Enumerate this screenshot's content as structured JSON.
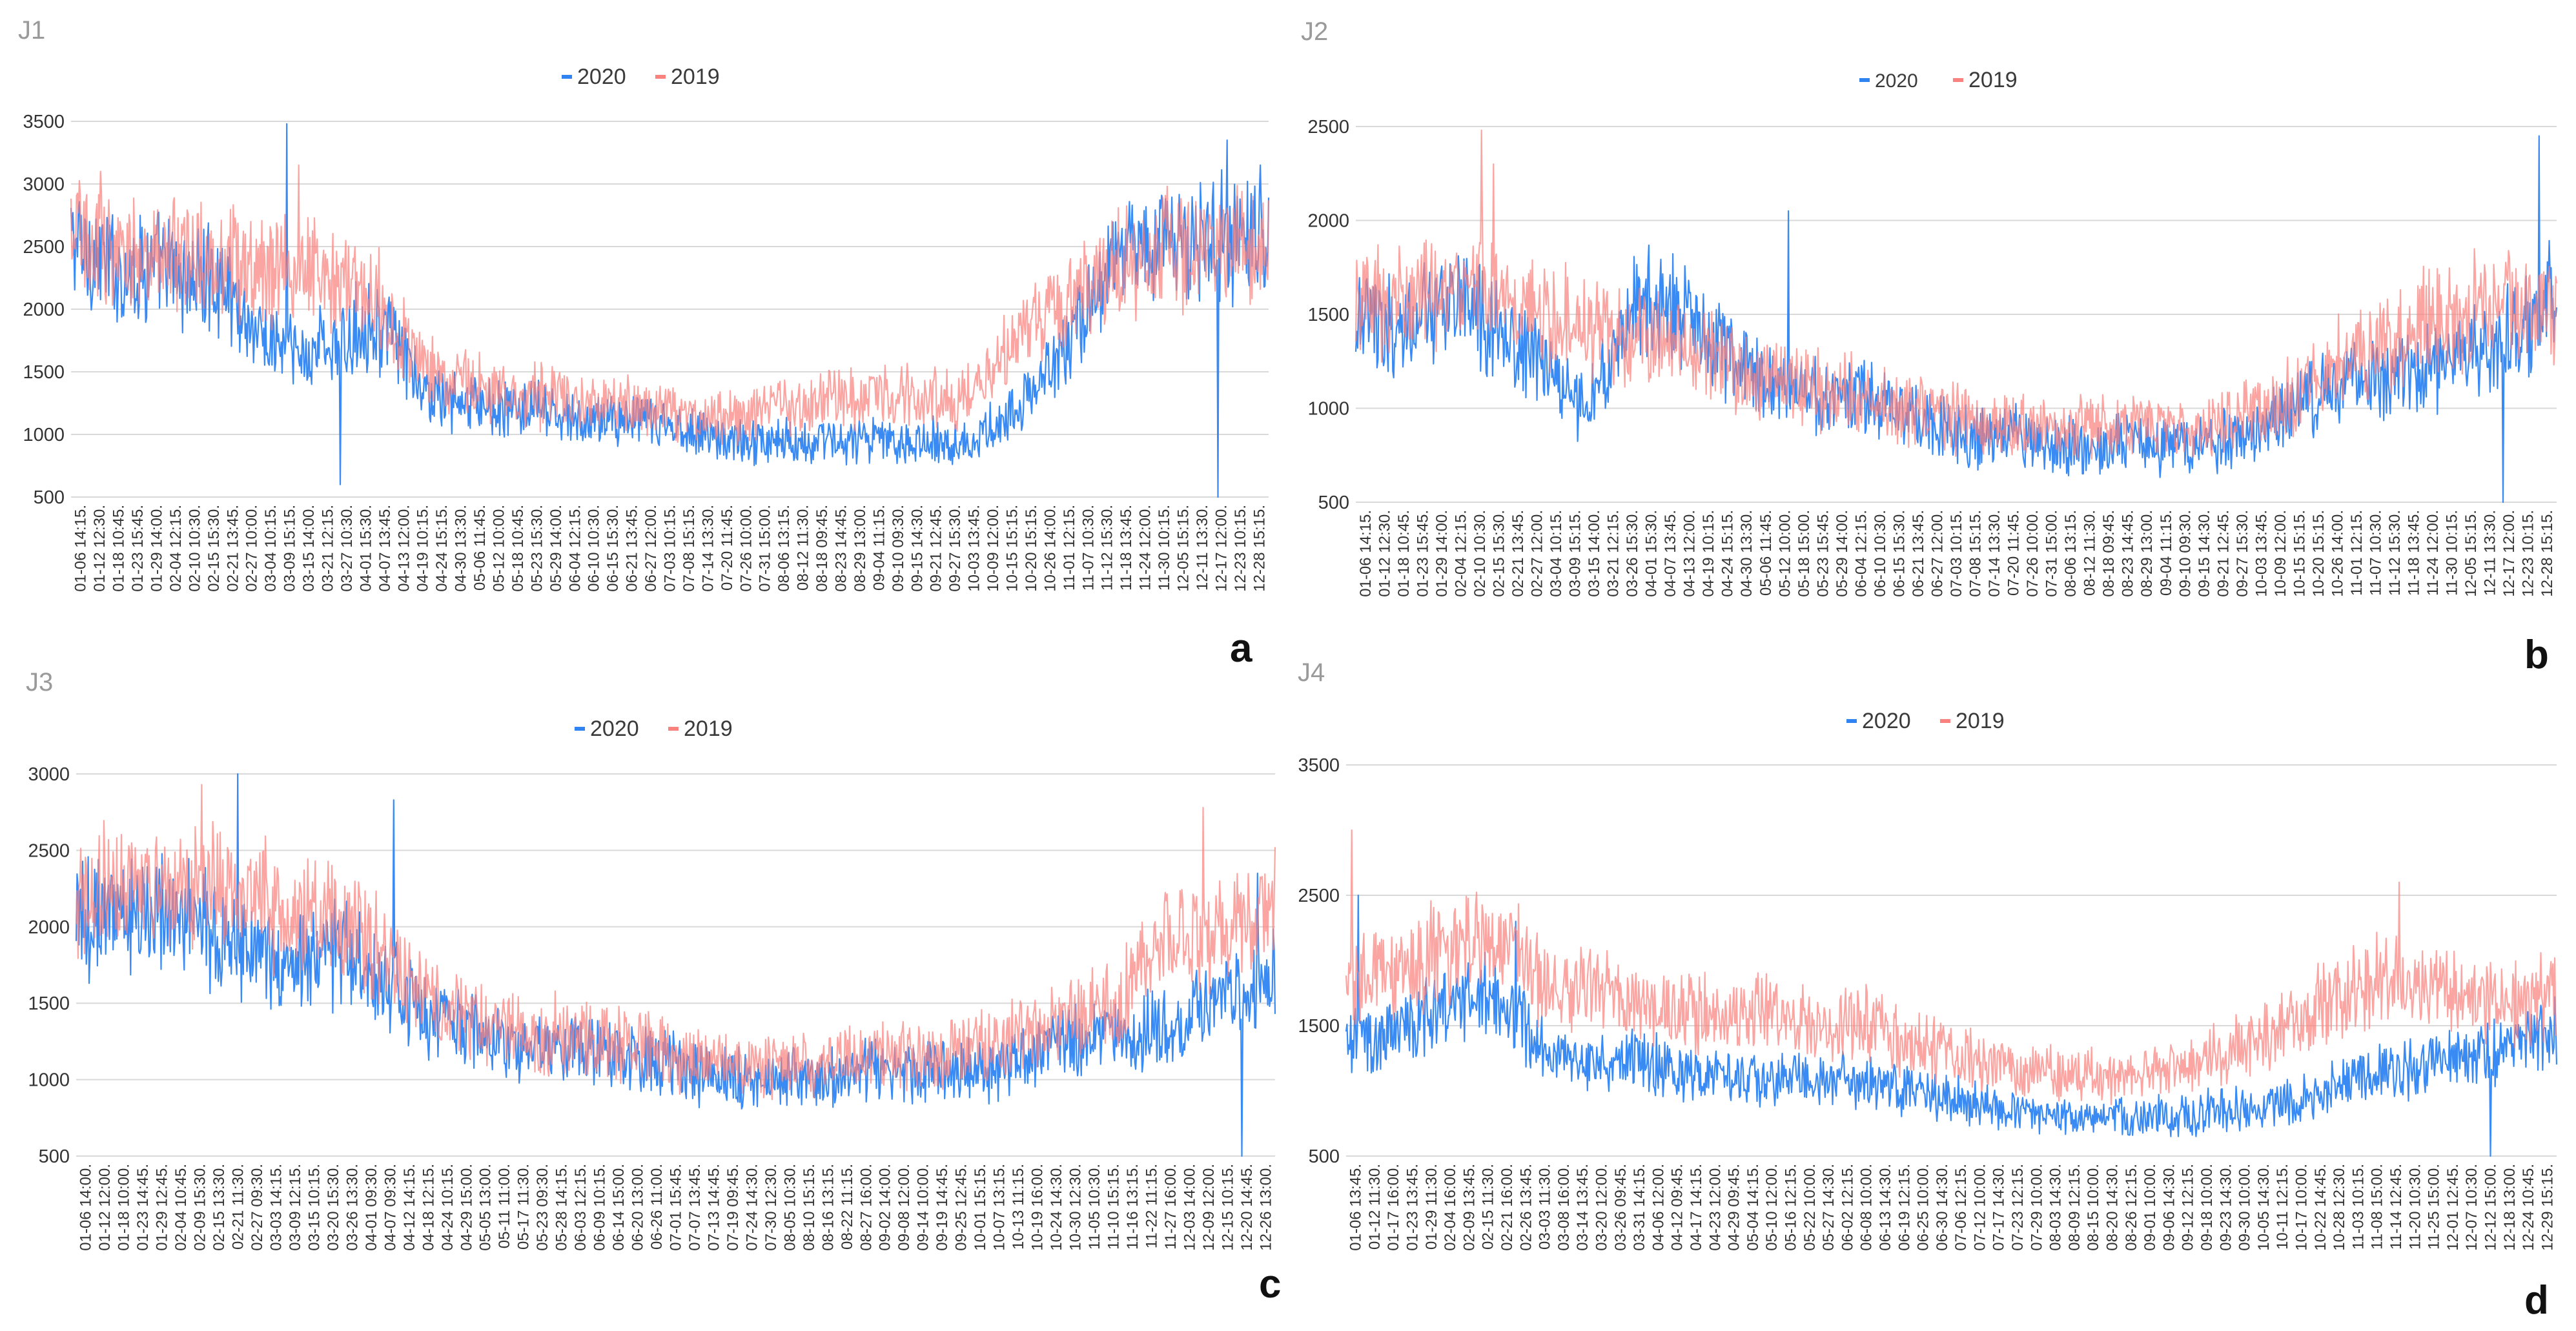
{
  "figure": {
    "description_panels": [
      "a",
      "b",
      "c",
      "d"
    ]
  },
  "chart_data": [
    {
      "id": "a",
      "type": "line",
      "title": "J1",
      "letter": "a",
      "legend": [
        "2020",
        "2019"
      ],
      "ylim": [
        500,
        3500
      ],
      "yticks": [
        500,
        1000,
        1500,
        2000,
        2500,
        3000,
        3500
      ],
      "grid": true,
      "x_tick_labels": [
        "01-06 14:15.",
        "01-12 12:30.",
        "01-18 10:45.",
        "01-23 15:45.",
        "01-29 14:00.",
        "02-04 12:15.",
        "02-10 10:30.",
        "02-15 15:30.",
        "02-21 13:45.",
        "02-27 10:00.",
        "03-04 10:15.",
        "03-09 15:15.",
        "03-15 14:00.",
        "03-21 12:15.",
        "03-27 10:30.",
        "04-01 15:30.",
        "04-07 13:45.",
        "04-13 12:00.",
        "04-19 10:15.",
        "04-24 15:15.",
        "04-30 13:30.",
        "05-06 11:45.",
        "05-12 10:00.",
        "05-18 10:45.",
        "05-23 15:30.",
        "05-29 14:00.",
        "06-04 12:15.",
        "06-10 10:30.",
        "06-15 15:30.",
        "06-21 13:45.",
        "06-27 12:00.",
        "07-03 10:15.",
        "07-08 15:15.",
        "07-14 13:30.",
        "07-20 11:45.",
        "07-26 10:00.",
        "07-31 15:00.",
        "08-06 13:15.",
        "08-12 11:30.",
        "08-18 09:45.",
        "08-23 14:45.",
        "08-29 13:00.",
        "09-04 11:15.",
        "09-10 09:30.",
        "09-15 14:30.",
        "09-21 12:45.",
        "09-27 15:30.",
        "10-03 13:45.",
        "10-09 12:00.",
        "10-15 15:15.",
        "10-20 15:15.",
        "10-26 14:00.",
        "11-01 12:15.",
        "11-07 10:30.",
        "11-12 15:30.",
        "11-18 13:45.",
        "11-24 12:00.",
        "11-30 10:15.",
        "12-05 15:15.",
        "12-11 13:30.",
        "12-17 12:00.",
        "12-23 10:15.",
        "12-28 15:15."
      ],
      "series": [
        {
          "name": "2020",
          "color": "#2f84f2",
          "profile": [
            2550,
            2450,
            2350,
            2300,
            2350,
            2300,
            2250,
            2250,
            2200,
            1950,
            1750,
            1700,
            1600,
            1750,
            1650,
            1900,
            1850,
            1700,
            1350,
            1300,
            1250,
            1250,
            1200,
            1200,
            1200,
            1150,
            1100,
            1100,
            1150,
            1100,
            1100,
            1050,
            1050,
            1000,
            950,
            950,
            950,
            950,
            950,
            950,
            950,
            950,
            950,
            950,
            950,
            950,
            950,
            950,
            1100,
            1200,
            1350,
            1600,
            1850,
            2100,
            2400,
            2550,
            2550,
            2550,
            2550,
            2550,
            2550,
            2550,
            2550
          ],
          "spikes": [
            {
              "at": 0.18,
              "value": 3480
            },
            {
              "at": 0.965,
              "value": 3350
            },
            {
              "at": 0.993,
              "value": 3150
            },
            {
              "at": 0.225,
              "value": 600
            },
            {
              "at": 0.958,
              "value": 500
            }
          ]
        },
        {
          "name": "2019",
          "color": "#f9827e",
          "profile": [
            2600,
            2550,
            2450,
            2450,
            2450,
            2450,
            2450,
            2450,
            2400,
            2300,
            2300,
            2300,
            2250,
            2300,
            2250,
            2200,
            2100,
            1800,
            1600,
            1500,
            1450,
            1400,
            1350,
            1300,
            1300,
            1300,
            1250,
            1250,
            1250,
            1200,
            1200,
            1200,
            1150,
            1150,
            1150,
            1150,
            1200,
            1200,
            1250,
            1250,
            1300,
            1300,
            1300,
            1300,
            1300,
            1300,
            1300,
            1350,
            1600,
            1800,
            1950,
            2000,
            2100,
            2200,
            2300,
            2400,
            2450,
            2500,
            2500,
            2500,
            2500,
            2500,
            2500
          ],
          "spikes": [
            {
              "at": 0.19,
              "value": 3150
            },
            {
              "at": 0.025,
              "value": 3100
            }
          ]
        }
      ]
    },
    {
      "id": "b",
      "type": "line",
      "title": "J2",
      "letter": "b",
      "legend": [
        "2020",
        "2019"
      ],
      "ylim": [
        500,
        2500
      ],
      "yticks": [
        500,
        1000,
        1500,
        2000,
        2500
      ],
      "grid": true,
      "x_tick_labels": [
        "01-06 14:15.",
        "01-12 12:30.",
        "01-18 10:45.",
        "01-23 15:45.",
        "01-29 14:00.",
        "02-04 12:15.",
        "02-10 10:30.",
        "02-15 15:30.",
        "02-21 13:45.",
        "02-27 12:00.",
        "03-04 10:15.",
        "03-09 15:15.",
        "03-15 14:00.",
        "03-21 12:15.",
        "03-26 15:30.",
        "04-01 15:30.",
        "04-07 13:45.",
        "04-13 12:00.",
        "04-19 10:15.",
        "04-24 15:15.",
        "04-30 13:30.",
        "05-06 11:45.",
        "05-12 10:00.",
        "05-18 15:00.",
        "05-23 15:45.",
        "05-29 14:00.",
        "06-04 12:15.",
        "06-10 10:30.",
        "06-15 15:30.",
        "06-21 13:45.",
        "06-27 12:00.",
        "07-03 10:15.",
        "07-08 15:15.",
        "07-14 13:30.",
        "07-20 11:45.",
        "07-26 10:00.",
        "07-31 15:00.",
        "08-06 13:15.",
        "08-12 11:30.",
        "08-18 09:45.",
        "08-23 14:45.",
        "08-29 13:00.",
        "09-04 11:15.",
        "09-10 09:30.",
        "09-15 14:30.",
        "09-21 12:45.",
        "09-27 15:30.",
        "10-03 13:45.",
        "10-09 12:00.",
        "10-15 15:15.",
        "10-20 15:15.",
        "10-26 14:00.",
        "11-01 12:15.",
        "11-07 10:30.",
        "11-12 15:30.",
        "11-18 13:45.",
        "11-24 12:00.",
        "11-30 10:15.",
        "12-05 15:15.",
        "12-11 13:30.",
        "12-17 12:00.",
        "12-23 10:15.",
        "12-28 15:15."
      ],
      "series": [
        {
          "name": "2020",
          "color": "#2f84f2",
          "profile": [
            1500,
            1450,
            1400,
            1450,
            1500,
            1550,
            1500,
            1450,
            1350,
            1300,
            1200,
            1050,
            1000,
            1200,
            1450,
            1550,
            1550,
            1500,
            1400,
            1300,
            1200,
            1150,
            1100,
            1100,
            1050,
            1050,
            1050,
            1050,
            1000,
            950,
            900,
            900,
            850,
            850,
            850,
            850,
            800,
            800,
            800,
            800,
            800,
            800,
            800,
            800,
            800,
            850,
            850,
            900,
            1000,
            1050,
            1100,
            1150,
            1150,
            1150,
            1200,
            1200,
            1250,
            1250,
            1300,
            1350,
            1400,
            1500,
            1700
          ],
          "spikes": [
            {
              "at": 0.985,
              "value": 2450
            },
            {
              "at": 0.36,
              "value": 2050
            },
            {
              "at": 0.955,
              "value": 500
            }
          ]
        },
        {
          "name": "2019",
          "color": "#f9827e",
          "profile": [
            1550,
            1550,
            1550,
            1600,
            1650,
            1700,
            1650,
            1600,
            1550,
            1550,
            1500,
            1450,
            1400,
            1400,
            1400,
            1400,
            1350,
            1350,
            1300,
            1250,
            1200,
            1150,
            1150,
            1100,
            1100,
            1100,
            1050,
            1050,
            1000,
            1000,
            950,
            950,
            900,
            900,
            900,
            900,
            900,
            900,
            900,
            900,
            900,
            900,
            900,
            900,
            900,
            950,
            950,
            1000,
            1050,
            1100,
            1200,
            1250,
            1300,
            1350,
            1400,
            1450,
            1450,
            1500,
            1550,
            1550,
            1550,
            1550,
            1500
          ],
          "spikes": [
            {
              "at": 0.105,
              "value": 2480
            },
            {
              "at": 0.115,
              "value": 2300
            }
          ]
        }
      ]
    },
    {
      "id": "c",
      "type": "line",
      "title": "J3",
      "letter": "c",
      "legend": [
        "2020",
        "2019"
      ],
      "ylim": [
        500,
        3000
      ],
      "yticks": [
        500,
        1000,
        1500,
        2000,
        2500,
        3000
      ],
      "grid": true,
      "x_tick_labels": [
        "01-06 14:00.",
        "01-12 12:00.",
        "01-18 10:00.",
        "01-23 14:45.",
        "01-29 12:45.",
        "02-04 10:45.",
        "02-09 15:30.",
        "02-15 13:30.",
        "02-21 11:30.",
        "02-27 09:30.",
        "03-03 14:15.",
        "03-09 12:15.",
        "03-15 10:15.",
        "03-20 15:30.",
        "03-26 13:30.",
        "04-01 09:30.",
        "04-07 09:30.",
        "04-12 14:15.",
        "04-18 12:15.",
        "04-24 10:15.",
        "04-29 15:00.",
        "05-05 13:00.",
        "05-11 11:00.",
        "05-17 11:30.",
        "05-23 09:30.",
        "05-28 14:15.",
        "06-03 12:15.",
        "06-09 10:15.",
        "06-14 15:00.",
        "06-20 13:00.",
        "06-26 11:00.",
        "07-01 15:45.",
        "07-07 13:45.",
        "07-13 14:45.",
        "07-19 09:45.",
        "07-24 14:30.",
        "07-30 12:30.",
        "08-05 10:30.",
        "08-10 15:15.",
        "08-16 13:15.",
        "08-22 11:15.",
        "08-27 16:00.",
        "09-02 14:00.",
        "09-08 12:00.",
        "09-14 10:00.",
        "09-19 14:45.",
        "09-25 12:45.",
        "10-01 15:15.",
        "10-07 13:15.",
        "10-13 11:15.",
        "10-19 16:00.",
        "10-24 14:30.",
        "10-30 12:30.",
        "11-05 10:30.",
        "11-10 15:15.",
        "11-16 13:15.",
        "11-22 11:15.",
        "11-27 16:00.",
        "12-03 14:00.",
        "12-09 12:00.",
        "12-15 10:15.",
        "12-20 14:45.",
        "12-26 13:00."
      ],
      "series": [
        {
          "name": "2020",
          "color": "#2f84f2",
          "profile": [
            2000,
            2100,
            2100,
            2150,
            2100,
            2050,
            2050,
            2000,
            1900,
            1850,
            1800,
            1750,
            1750,
            1800,
            1800,
            1700,
            1650,
            1550,
            1450,
            1400,
            1350,
            1300,
            1250,
            1200,
            1200,
            1200,
            1200,
            1200,
            1150,
            1150,
            1100,
            1100,
            1050,
            1050,
            1000,
            1000,
            1000,
            1000,
            1000,
            1000,
            1050,
            1050,
            1050,
            1050,
            1050,
            1050,
            1050,
            1050,
            1100,
            1150,
            1200,
            1250,
            1250,
            1250,
            1300,
            1300,
            1350,
            1400,
            1450,
            1500,
            1550,
            1600,
            1650
          ],
          "spikes": [
            {
              "at": 0.135,
              "value": 3000
            },
            {
              "at": 0.265,
              "value": 2830
            },
            {
              "at": 0.985,
              "value": 2350
            },
            {
              "at": 0.972,
              "value": 500
            }
          ]
        },
        {
          "name": "2019",
          "color": "#f9827e",
          "profile": [
            2100,
            2200,
            2250,
            2250,
            2300,
            2300,
            2300,
            2250,
            2250,
            2200,
            2150,
            2100,
            2050,
            2050,
            2000,
            1900,
            1800,
            1650,
            1550,
            1450,
            1400,
            1350,
            1350,
            1300,
            1300,
            1300,
            1300,
            1250,
            1250,
            1200,
            1200,
            1150,
            1150,
            1100,
            1100,
            1100,
            1100,
            1100,
            1100,
            1150,
            1150,
            1150,
            1150,
            1150,
            1150,
            1150,
            1200,
            1200,
            1250,
            1300,
            1350,
            1400,
            1400,
            1450,
            1500,
            1700,
            1850,
            1900,
            1950,
            1950,
            2000,
            2050,
            2100
          ],
          "spikes": [
            {
              "at": 0.105,
              "value": 2930
            },
            {
              "at": 0.94,
              "value": 2780
            }
          ]
        }
      ]
    },
    {
      "id": "d",
      "type": "line",
      "title": "J4",
      "letter": "d",
      "legend": [
        "2020",
        "2019"
      ],
      "ylim": [
        500,
        3500
      ],
      "yticks": [
        500,
        1500,
        2500,
        3500
      ],
      "ytick_text": [
        "500",
        "1500",
        "2500",
        "3500"
      ],
      "grid": true,
      "x_tick_labels": [
        "01-06 13:45.",
        "01-12 11:30.",
        "01-17 16:00.",
        "01-23 13:45.",
        "01-29 11:30.",
        "02-04 16:00.",
        "02-09 13:45.",
        "02-15 11:30.",
        "02-21 16:00.",
        "02-26 13:45.",
        "03-03 11:30.",
        "03-08 16:00.",
        "03-14 13:45.",
        "03-20 12:00.",
        "03-26 09:45.",
        "03-31 14:15.",
        "04-06 12:00.",
        "04-12 09:45.",
        "04-17 14:15.",
        "04-23 12:00.",
        "04-29 09:45.",
        "05-04 14:15.",
        "05-10 12:00.",
        "05-16 12:15.",
        "05-22 10:00.",
        "05-27 14:30.",
        "06-02 12:15.",
        "06-08 10:00.",
        "06-13 14:30.",
        "06-19 12:15.",
        "06-25 10:00.",
        "06-30 14:30.",
        "07-06 12:15.",
        "07-12 10:00.",
        "07-17 14:30.",
        "07-23 12:15.",
        "07-29 10:00.",
        "08-03 14:30.",
        "08-09 12:15.",
        "08-15 10:00.",
        "08-20 14:30.",
        "08-26 12:15.",
        "09-01 10:00.",
        "09-06 14:30.",
        "09-12 12:15.",
        "09-18 10:00.",
        "09-23 14:30.",
        "09-30 10:00.",
        "10-05 14:30.",
        "10-11 12:15.",
        "10-17 10:00.",
        "10-22 14:45.",
        "10-28 12:30.",
        "11-03 10:15.",
        "11-08 15:00.",
        "11-14 12:45.",
        "11-20 10:30.",
        "11-25 15:00.",
        "12-01 12:45.",
        "12-07 10:30.",
        "12-12 15:00.",
        "12-18 13:00.",
        "12-24 10:45.",
        "12-29 15:15."
      ],
      "series": [
        {
          "name": "2020",
          "color": "#2f84f2",
          "profile": [
            1400,
            1400,
            1450,
            1500,
            1550,
            1600,
            1650,
            1700,
            1650,
            1550,
            1400,
            1300,
            1250,
            1250,
            1250,
            1250,
            1200,
            1150,
            1150,
            1100,
            1100,
            1100,
            1100,
            1100,
            1100,
            1100,
            1100,
            1050,
            1050,
            1000,
            1000,
            950,
            950,
            900,
            850,
            850,
            800,
            800,
            800,
            800,
            800,
            800,
            800,
            800,
            800,
            850,
            850,
            850,
            900,
            900,
            950,
            1000,
            1050,
            1100,
            1150,
            1150,
            1200,
            1200,
            1250,
            1300,
            1300,
            1350,
            1400,
            1450
          ],
          "spikes": [
            {
              "at": 0.01,
              "value": 2500
            },
            {
              "at": 0.14,
              "value": 2300
            },
            {
              "at": 0.945,
              "value": 500
            }
          ]
        },
        {
          "name": "2019",
          "color": "#f9827e",
          "profile": [
            1800,
            1850,
            1900,
            1950,
            2000,
            2050,
            2100,
            2150,
            2100,
            2000,
            1850,
            1800,
            1800,
            1750,
            1750,
            1700,
            1650,
            1650,
            1600,
            1600,
            1600,
            1600,
            1600,
            1550,
            1550,
            1500,
            1500,
            1500,
            1450,
            1400,
            1350,
            1300,
            1250,
            1200,
            1150,
            1150,
            1150,
            1100,
            1100,
            1100,
            1100,
            1100,
            1150,
            1150,
            1200,
            1250,
            1300,
            1350,
            1450,
            1500,
            1600,
            1700,
            1750,
            1800,
            1850,
            1850,
            1800,
            1800,
            1750,
            1700,
            1700,
            1700,
            1700,
            1700
          ],
          "spikes": [
            {
              "at": 0.005,
              "value": 3000
            },
            {
              "at": 0.87,
              "value": 2600
            }
          ]
        }
      ]
    }
  ]
}
